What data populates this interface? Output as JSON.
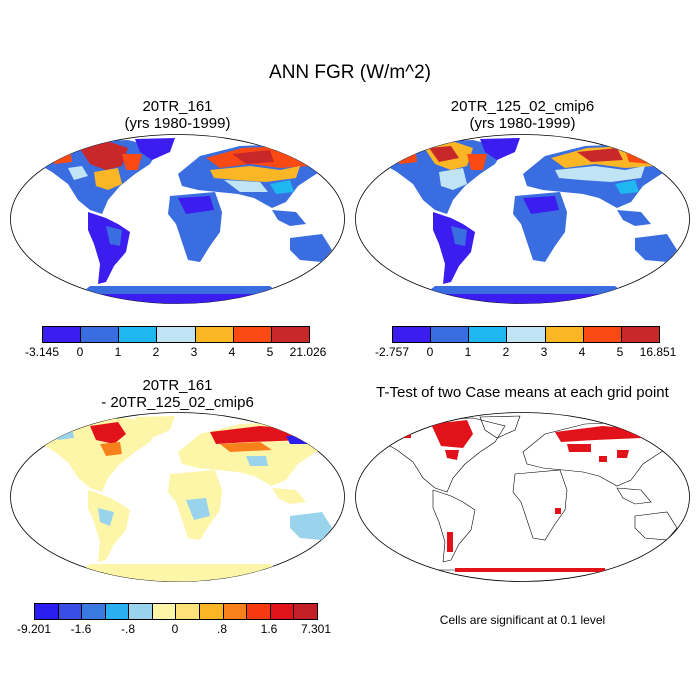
{
  "title": "ANN FGR (W/m^2)",
  "panels": [
    {
      "title_line1": "20TR_161",
      "title_line2": "(yrs 1980-1999)"
    },
    {
      "title_line1": "20TR_125_02_cmip6",
      "title_line2": "(yrs 1980-1999)"
    },
    {
      "title_line1": "20TR_161",
      "title_line2": "- 20TR_125_02_cmip6"
    },
    {
      "title_line1": "T-Test of two Case means at each grid point"
    }
  ],
  "colorbar1": {
    "colors": [
      "#3b1df0",
      "#3a6de0",
      "#1fb7f0",
      "#c0e4f4",
      "#fbb626",
      "#fa4a14",
      "#c8282a"
    ],
    "labels": [
      "-3.145",
      "0",
      "1",
      "2",
      "3",
      "4",
      "5",
      "21.026"
    ]
  },
  "colorbar2": {
    "colors": [
      "#3b1df0",
      "#3a6de0",
      "#1fb7f0",
      "#c0e4f4",
      "#fbb626",
      "#fa4a14",
      "#c8282a"
    ],
    "labels": [
      "-2.757",
      "0",
      "1",
      "2",
      "3",
      "4",
      "5",
      "16.851"
    ]
  },
  "colorbar3": {
    "colors": [
      "#2b1ef0",
      "#3a4ee6",
      "#3a7ae0",
      "#2ab0f0",
      "#9ad4ec",
      "#fdf6a8",
      "#fde27a",
      "#fbb626",
      "#f9811c",
      "#f53a12",
      "#e2121a",
      "#c41e26"
    ],
    "labels": [
      "-9.201",
      "-1.6",
      "-.8",
      "0",
      ".8",
      "1.6",
      "7.301"
    ]
  },
  "significance_note": "Cells are significant at 0.1 level"
}
